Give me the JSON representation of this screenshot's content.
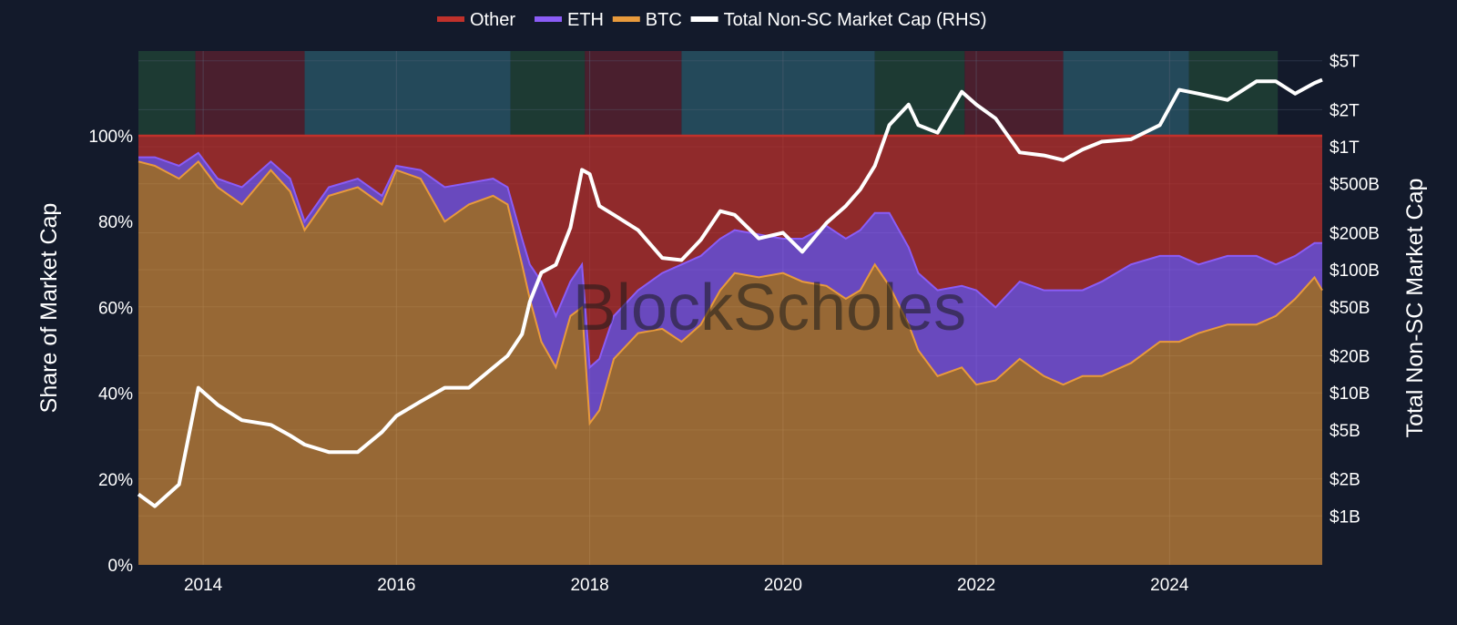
{
  "chart_data": {
    "type": "area",
    "legend": {
      "placement": "top-center",
      "items": [
        {
          "label": "Other",
          "color": "#c0312b"
        },
        {
          "label": "ETH",
          "color": "#8b5cf6"
        },
        {
          "label": "BTC",
          "color": "#e89a3c"
        },
        {
          "label": "Total Non-SC Market Cap (RHS)",
          "color": "#ffffff"
        }
      ]
    },
    "ylabel": "Share of Market Cap",
    "y2label": "Total Non-SC Market Cap",
    "xlim": [
      2013.33,
      2025.58
    ],
    "ylim": [
      0,
      100
    ],
    "y2_scale": "log",
    "y2lim": [
      0.4,
      6000
    ],
    "x_ticks": [
      {
        "value": 2014,
        "label": "2014"
      },
      {
        "value": 2016,
        "label": "2016"
      },
      {
        "value": 2018,
        "label": "2018"
      },
      {
        "value": 2020,
        "label": "2020"
      },
      {
        "value": 2022,
        "label": "2022"
      },
      {
        "value": 2024,
        "label": "2024"
      }
    ],
    "y_ticks": [
      {
        "value": 0,
        "label": "0%"
      },
      {
        "value": 20,
        "label": "20%"
      },
      {
        "value": 40,
        "label": "40%"
      },
      {
        "value": 60,
        "label": "60%"
      },
      {
        "value": 80,
        "label": "80%"
      },
      {
        "value": 100,
        "label": "100%"
      }
    ],
    "y2_ticks": [
      {
        "value": 1,
        "label": "$1B"
      },
      {
        "value": 2,
        "label": "$2B"
      },
      {
        "value": 5,
        "label": "$5B"
      },
      {
        "value": 10,
        "label": "$10B"
      },
      {
        "value": 20,
        "label": "$20B"
      },
      {
        "value": 50,
        "label": "$50B"
      },
      {
        "value": 100,
        "label": "$100B"
      },
      {
        "value": 200,
        "label": "$200B"
      },
      {
        "value": 500,
        "label": "$500B"
      },
      {
        "value": 1000,
        "label": "$1T"
      },
      {
        "value": 2000,
        "label": "$2T"
      },
      {
        "value": 5000,
        "label": "$5T"
      }
    ],
    "regime_bands": [
      {
        "start": 2013.33,
        "end": 2013.92,
        "color": "#1d3a33"
      },
      {
        "start": 2013.92,
        "end": 2015.05,
        "color": "#4a1f2e"
      },
      {
        "start": 2015.05,
        "end": 2017.18,
        "color": "#24495a"
      },
      {
        "start": 2017.18,
        "end": 2017.95,
        "color": "#1d3a33"
      },
      {
        "start": 2017.95,
        "end": 2018.95,
        "color": "#4a1f2e"
      },
      {
        "start": 2018.95,
        "end": 2020.95,
        "color": "#24495a"
      },
      {
        "start": 2020.95,
        "end": 2021.88,
        "color": "#1d3a33"
      },
      {
        "start": 2021.88,
        "end": 2022.9,
        "color": "#4a1f2e"
      },
      {
        "start": 2022.9,
        "end": 2024.2,
        "color": "#24495a"
      },
      {
        "start": 2024.2,
        "end": 2025.12,
        "color": "#1d3a33"
      }
    ],
    "watermark": "BlockScholes",
    "x": [
      2013.33,
      2013.5,
      2013.75,
      2013.95,
      2014.15,
      2014.4,
      2014.7,
      2014.9,
      2015.05,
      2015.3,
      2015.6,
      2015.85,
      2016.0,
      2016.25,
      2016.5,
      2016.75,
      2017.0,
      2017.15,
      2017.3,
      2017.38,
      2017.5,
      2017.65,
      2017.8,
      2017.92,
      2018.0,
      2018.1,
      2018.25,
      2018.5,
      2018.75,
      2018.95,
      2019.15,
      2019.35,
      2019.5,
      2019.75,
      2020.0,
      2020.2,
      2020.45,
      2020.65,
      2020.8,
      2020.95,
      2021.1,
      2021.3,
      2021.4,
      2021.6,
      2021.85,
      2022.0,
      2022.2,
      2022.45,
      2022.7,
      2022.9,
      2023.1,
      2023.3,
      2023.6,
      2023.9,
      2024.1,
      2024.3,
      2024.6,
      2024.9,
      2025.1,
      2025.3,
      2025.5,
      2025.58
    ],
    "series": [
      {
        "name": "BTC",
        "values": [
          94,
          93,
          90,
          94,
          88,
          84,
          92,
          87,
          78,
          86,
          88,
          84,
          92,
          90,
          80,
          84,
          86,
          84,
          70,
          62,
          52,
          46,
          58,
          60,
          33,
          36,
          48,
          54,
          55,
          52,
          56,
          64,
          68,
          67,
          68,
          66,
          65,
          62,
          64,
          70,
          65,
          56,
          50,
          44,
          46,
          42,
          43,
          48,
          44,
          42,
          44,
          44,
          47,
          52,
          52,
          54,
          56,
          56,
          58,
          62,
          67,
          64
        ]
      },
      {
        "name": "ETH",
        "values": [
          95,
          95,
          93,
          96,
          90,
          88,
          94,
          90,
          80,
          88,
          90,
          86,
          93,
          92,
          88,
          89,
          90,
          88,
          76,
          70,
          66,
          58,
          66,
          70,
          46,
          48,
          58,
          64,
          68,
          70,
          72,
          76,
          78,
          77,
          76,
          76,
          79,
          76,
          78,
          82,
          82,
          74,
          68,
          64,
          65,
          64,
          60,
          66,
          64,
          64,
          64,
          66,
          70,
          72,
          72,
          70,
          72,
          72,
          70,
          72,
          75,
          75
        ]
      },
      {
        "name": "Other",
        "values": [
          100,
          100,
          100,
          100,
          100,
          100,
          100,
          100,
          100,
          100,
          100,
          100,
          100,
          100,
          100,
          100,
          100,
          100,
          100,
          100,
          100,
          100,
          100,
          100,
          100,
          100,
          100,
          100,
          100,
          100,
          100,
          100,
          100,
          100,
          100,
          100,
          100,
          100,
          100,
          100,
          100,
          100,
          100,
          100,
          100,
          100,
          100,
          100,
          100,
          100,
          100,
          100,
          100,
          100,
          100,
          100,
          100,
          100,
          100,
          100,
          100,
          100
        ]
      },
      {
        "name": "Total Non-SC Market Cap (RHS)",
        "axis": "right",
        "values": [
          1.5,
          1.2,
          1.8,
          11,
          8,
          6,
          5.5,
          4.5,
          3.8,
          3.3,
          3.3,
          4.8,
          6.5,
          8.5,
          11,
          11,
          16,
          20,
          30,
          55,
          95,
          110,
          220,
          650,
          600,
          330,
          280,
          210,
          125,
          120,
          175,
          300,
          280,
          180,
          200,
          140,
          240,
          330,
          450,
          700,
          1500,
          2200,
          1500,
          1300,
          2800,
          2200,
          1700,
          900,
          850,
          780,
          950,
          1100,
          1150,
          1500,
          2900,
          2700,
          2400,
          3400,
          3400,
          2700,
          3300,
          3500
        ]
      }
    ]
  }
}
